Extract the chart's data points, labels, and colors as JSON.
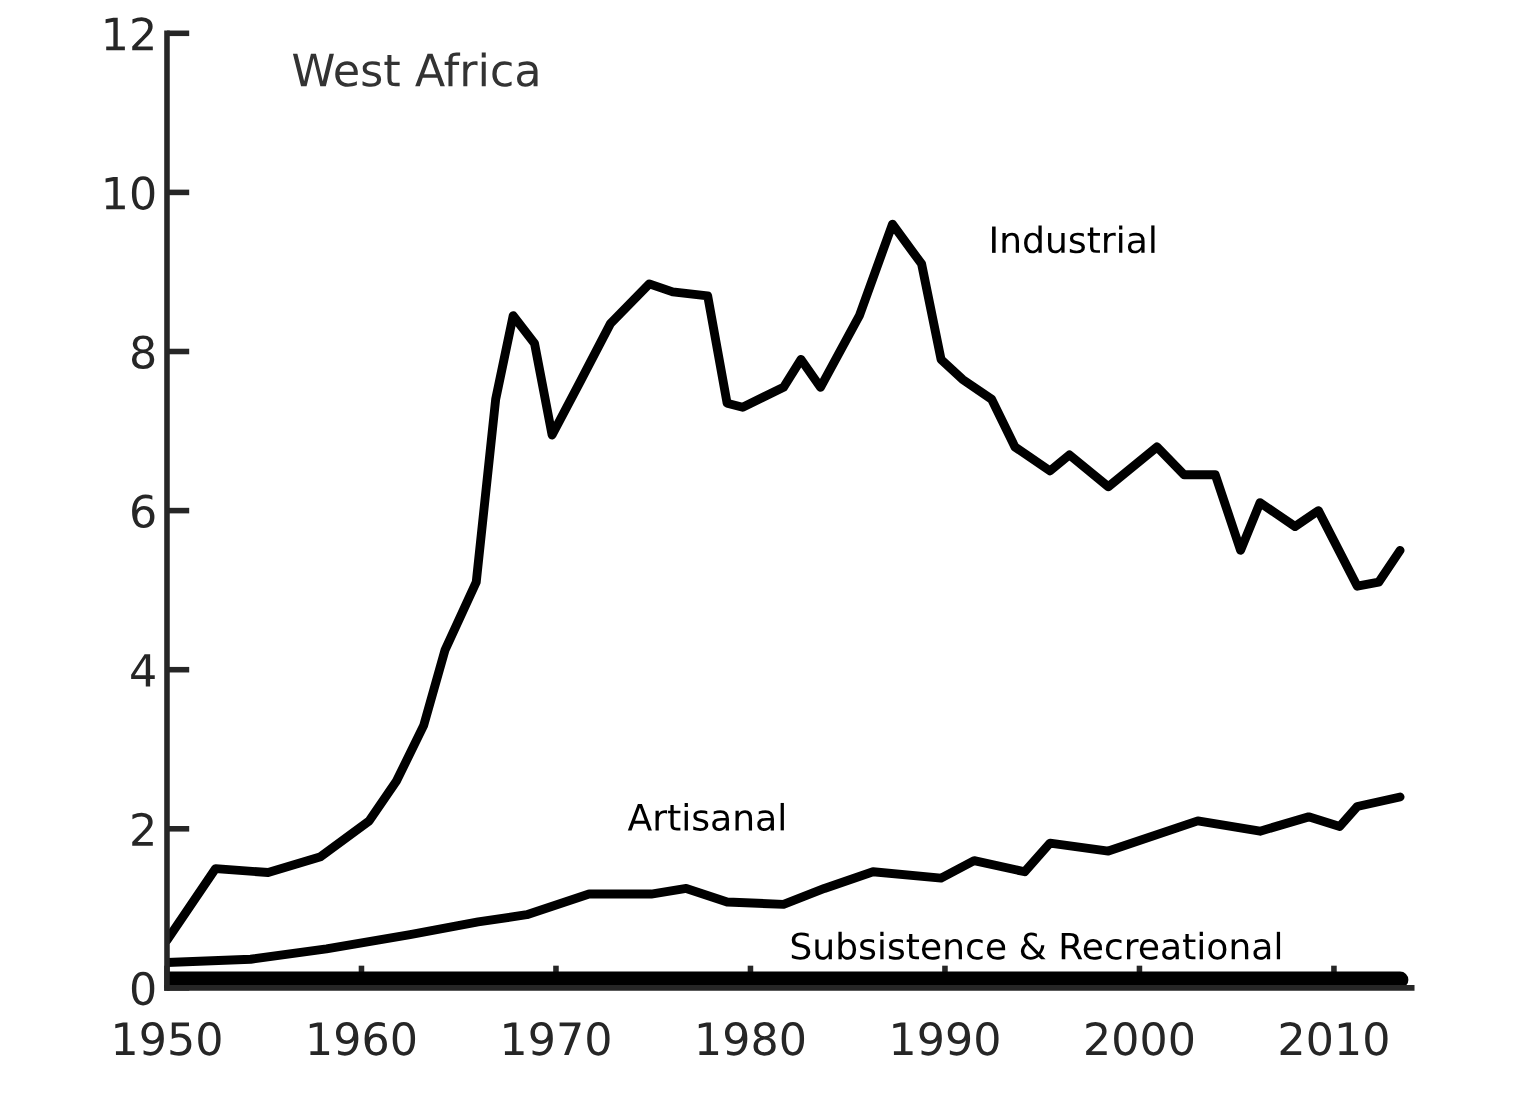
{
  "chart_data": {
    "type": "line",
    "title": "West Africa",
    "xlim": [
      1950,
      2014
    ],
    "xticks": [
      1950,
      1960,
      1970,
      1980,
      1990,
      2000,
      2010
    ],
    "ylim": [
      0,
      12
    ],
    "yticks": [
      0,
      2,
      4,
      6,
      8,
      10,
      12
    ],
    "grid": false,
    "legend": false,
    "marker": "none",
    "line_style": "solid",
    "series": [
      {
        "name": "Industrial",
        "color": "#000000",
        "x": [
          1950,
          1952.5,
          1955.2,
          1957.9,
          1960.4,
          1961.8,
          1963.2,
          1964.3,
          1965.9,
          1966.9,
          1967.8,
          1968.9,
          1969.8,
          1971.2,
          1972.8,
          1974.8,
          1976,
          1977.8,
          1978.8,
          1979.6,
          1981.7,
          1982.6,
          1983.6,
          1985.6,
          1987.3,
          1988.8,
          1989.8,
          1990.9,
          1992.4,
          1993.6,
          1995.4,
          1996.4,
          1998.4,
          2000.9,
          2002.3,
          2003.9,
          2005.2,
          2006.2,
          2008,
          2009.2,
          2011.2,
          2012.3,
          2013.4
        ],
        "values": [
          0.6,
          1.5,
          1.45,
          1.65,
          2.1,
          2.6,
          3.3,
          4.25,
          5.1,
          7.4,
          8.45,
          8.1,
          6.95,
          7.6,
          8.35,
          8.85,
          8.75,
          8.7,
          7.35,
          7.3,
          7.55,
          7.9,
          7.55,
          8.45,
          9.6,
          9.1,
          7.9,
          7.65,
          7.4,
          6.8,
          6.5,
          6.7,
          6.3,
          6.8,
          6.45,
          6.45,
          5.5,
          6.1,
          5.8,
          6.0,
          5.05,
          5.1,
          5.5
        ]
      },
      {
        "name": "Artisanal",
        "color": "#000000",
        "x": [
          1950,
          1954.3,
          1958.2,
          1962.5,
          1966,
          1968.5,
          1971.7,
          1974.9,
          1976.7,
          1978.8,
          1981.7,
          1983.8,
          1986.3,
          1989.8,
          1991.5,
          1994.1,
          1995.4,
          1998.4,
          2003,
          2006.2,
          2008.7,
          2010.3,
          2011.2,
          2013.4
        ],
        "values": [
          0.32,
          0.36,
          0.49,
          0.67,
          0.83,
          0.92,
          1.18,
          1.18,
          1.25,
          1.08,
          1.05,
          1.25,
          1.46,
          1.38,
          1.6,
          1.46,
          1.82,
          1.72,
          2.1,
          1.97,
          2.15,
          2.03,
          2.28,
          2.4
        ]
      },
      {
        "name": "Subsistence & Recreational",
        "color": "#000000",
        "x": [
          1950,
          1970,
          1990,
          2013.4
        ],
        "values": [
          0.1,
          0.1,
          0.1,
          0.1
        ]
      }
    ]
  }
}
